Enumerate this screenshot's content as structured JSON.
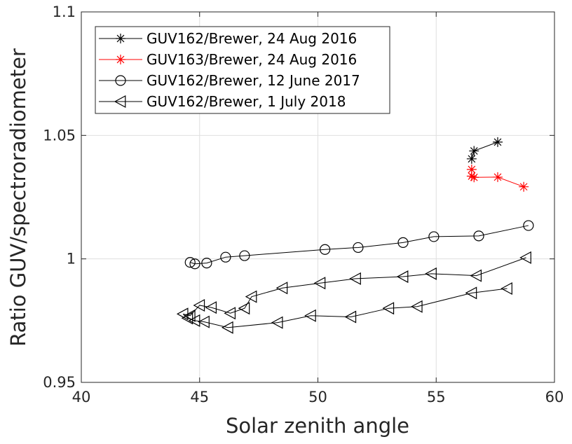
{
  "chart_data": {
    "type": "line",
    "xlabel": "Solar zenith angle",
    "ylabel": "Ratio GUV/spectroradiometer",
    "xlim": [
      40,
      60
    ],
    "ylim": [
      0.95,
      1.1
    ],
    "xticks": [
      40,
      45,
      50,
      55,
      60
    ],
    "xtick_labels": [
      "40",
      "45",
      "50",
      "55",
      "60"
    ],
    "yticks": [
      0.95,
      1.0,
      1.05,
      1.1
    ],
    "ytick_labels": [
      "0.95",
      "1",
      "1.05",
      "1.1"
    ],
    "grid": true,
    "legend_position": "top-left",
    "series": [
      {
        "name": "GUV162/Brewer, 24 Aug 2016",
        "color": "#000000",
        "marker": "asterisk",
        "x": [
          56.5,
          56.6,
          57.6
        ],
        "y": [
          1.0405,
          1.0437,
          1.0473
        ]
      },
      {
        "name": "GUV163/Brewer, 24 Aug 2016",
        "color": "#ff0000",
        "marker": "asterisk",
        "x": [
          56.5,
          56.5,
          56.6,
          57.6,
          58.7
        ],
        "y": [
          1.0362,
          1.0335,
          1.033,
          1.0331,
          1.0292
        ]
      },
      {
        "name": "GUV162/Brewer, 12 June 2017",
        "color": "#000000",
        "marker": "circle",
        "x": [
          44.6,
          44.8,
          45.3,
          46.1,
          46.9,
          50.3,
          51.7,
          53.6,
          54.9,
          56.8,
          58.9
        ],
        "y": [
          0.9986,
          0.998,
          0.9983,
          1.0007,
          1.0013,
          1.0038,
          1.0046,
          1.0066,
          1.009,
          1.0093,
          1.0135
        ]
      },
      {
        "name": "GUV162/Brewer, 1 July 2018",
        "color": "#000000",
        "marker": "triangle-left",
        "x": [
          58.0,
          56.5,
          54.2,
          53.0,
          51.4,
          49.7,
          48.3,
          46.2,
          45.2,
          44.8,
          44.5,
          44.3,
          44.6,
          45.0,
          45.5,
          46.3,
          46.9,
          47.2,
          48.5,
          50.1,
          51.6,
          53.6,
          54.8,
          56.7,
          58.8
        ],
        "y": [
          0.988,
          0.9862,
          0.9807,
          0.98,
          0.9765,
          0.977,
          0.9742,
          0.9722,
          0.9745,
          0.975,
          0.976,
          0.9777,
          0.977,
          0.9812,
          0.9803,
          0.978,
          0.98,
          0.9847,
          0.9882,
          0.9902,
          0.992,
          0.9928,
          0.994,
          0.9932,
          1.0005
        ]
      }
    ]
  }
}
